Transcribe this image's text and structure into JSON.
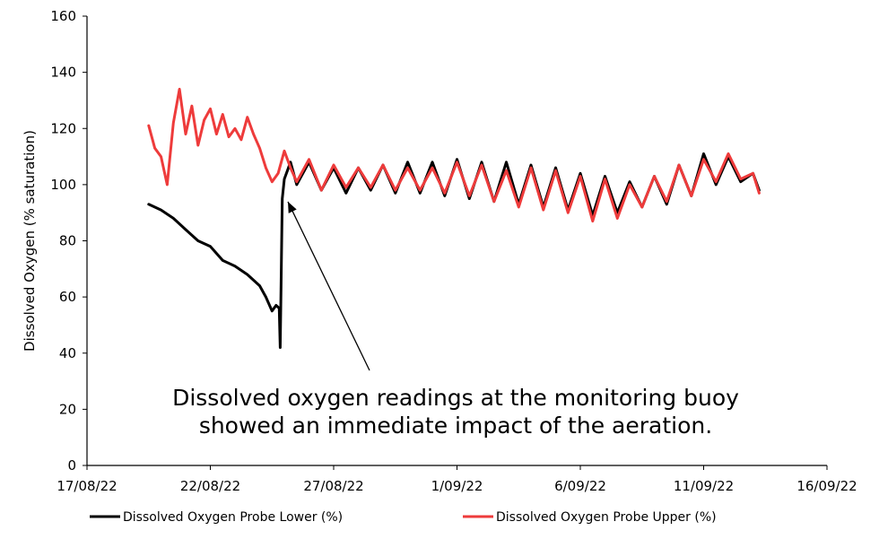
{
  "chart_data": {
    "type": "line",
    "title": "",
    "xlabel": "",
    "ylabel": "Dissolved Oxygen (% saturation)",
    "xlim": [
      "17/08/22",
      "16/09/22"
    ],
    "ylim": [
      0,
      160
    ],
    "x_ticks": [
      "17/08/22",
      "22/08/22",
      "27/08/22",
      "1/09/22",
      "6/09/22",
      "11/09/22",
      "16/09/22"
    ],
    "y_ticks": [
      0,
      20,
      40,
      60,
      80,
      100,
      120,
      140,
      160
    ],
    "grid": false,
    "legend_position": "bottom",
    "annotation": {
      "lines": [
        "Dissolved oxygen readings at the monitoring buoy",
        "showed an immediate impact of the aeration."
      ],
      "points_to": {
        "x": "2022-08-25",
        "y": 92
      }
    },
    "series": [
      {
        "name": "Dissolved Oxygen Probe Lower (%)",
        "color": "#000000",
        "x": [
          "2022-08-19T12:00",
          "2022-08-20T00:00",
          "2022-08-20T12:00",
          "2022-08-21T00:00",
          "2022-08-21T12:00",
          "2022-08-22T00:00",
          "2022-08-22T12:00",
          "2022-08-23T00:00",
          "2022-08-23T12:00",
          "2022-08-24T00:00",
          "2022-08-24T06:00",
          "2022-08-24T12:00",
          "2022-08-24T16:00",
          "2022-08-24T19:00",
          "2022-08-24T20:00",
          "2022-08-24T22:00",
          "2022-08-25T00:00",
          "2022-08-25T06:00",
          "2022-08-25T12:00",
          "2022-08-26T00:00",
          "2022-08-26T12:00",
          "2022-08-27T00:00",
          "2022-08-27T12:00",
          "2022-08-28T00:00",
          "2022-08-28T12:00",
          "2022-08-29T00:00",
          "2022-08-29T12:00",
          "2022-08-30T00:00",
          "2022-08-30T12:00",
          "2022-08-31T00:00",
          "2022-08-31T12:00",
          "2022-09-01T00:00",
          "2022-09-01T12:00",
          "2022-09-02T00:00",
          "2022-09-02T12:00",
          "2022-09-03T00:00",
          "2022-09-03T12:00",
          "2022-09-04T00:00",
          "2022-09-04T12:00",
          "2022-09-05T00:00",
          "2022-09-05T12:00",
          "2022-09-06T00:00",
          "2022-09-06T12:00",
          "2022-09-07T00:00",
          "2022-09-07T12:00",
          "2022-09-08T00:00",
          "2022-09-08T12:00",
          "2022-09-09T00:00",
          "2022-09-09T12:00",
          "2022-09-10T00:00",
          "2022-09-10T12:00",
          "2022-09-11T00:00",
          "2022-09-11T12:00",
          "2022-09-12T00:00",
          "2022-09-12T12:00",
          "2022-09-13T00:00",
          "2022-09-13T06:00"
        ],
        "values": [
          93,
          91,
          88,
          84,
          80,
          78,
          73,
          71,
          68,
          64,
          60,
          55,
          57,
          56,
          42,
          95,
          102,
          108,
          100,
          108,
          98,
          106,
          97,
          106,
          98,
          107,
          97,
          108,
          97,
          108,
          96,
          109,
          95,
          108,
          94,
          108,
          93,
          107,
          92,
          106,
          91,
          104,
          89,
          103,
          90,
          101,
          92,
          103,
          93,
          107,
          96,
          111,
          100,
          110,
          101,
          104,
          98
        ]
      },
      {
        "name": "Dissolved Oxygen Probe Upper (%)",
        "color": "#ee3b3b",
        "x": [
          "2022-08-19T12:00",
          "2022-08-19T18:00",
          "2022-08-20T00:00",
          "2022-08-20T06:00",
          "2022-08-20T12:00",
          "2022-08-20T18:00",
          "2022-08-21T00:00",
          "2022-08-21T06:00",
          "2022-08-21T12:00",
          "2022-08-21T18:00",
          "2022-08-22T00:00",
          "2022-08-22T06:00",
          "2022-08-22T12:00",
          "2022-08-22T18:00",
          "2022-08-23T00:00",
          "2022-08-23T06:00",
          "2022-08-23T12:00",
          "2022-08-23T18:00",
          "2022-08-24T00:00",
          "2022-08-24T06:00",
          "2022-08-24T12:00",
          "2022-08-24T18:00",
          "2022-08-25T00:00",
          "2022-08-25T06:00",
          "2022-08-25T12:00",
          "2022-08-26T00:00",
          "2022-08-26T12:00",
          "2022-08-27T00:00",
          "2022-08-27T12:00",
          "2022-08-28T00:00",
          "2022-08-28T12:00",
          "2022-08-29T00:00",
          "2022-08-29T12:00",
          "2022-08-30T00:00",
          "2022-08-30T12:00",
          "2022-08-31T00:00",
          "2022-08-31T12:00",
          "2022-09-01T00:00",
          "2022-09-01T12:00",
          "2022-09-02T00:00",
          "2022-09-02T12:00",
          "2022-09-03T00:00",
          "2022-09-03T12:00",
          "2022-09-04T00:00",
          "2022-09-04T12:00",
          "2022-09-05T00:00",
          "2022-09-05T12:00",
          "2022-09-06T00:00",
          "2022-09-06T12:00",
          "2022-09-07T00:00",
          "2022-09-07T12:00",
          "2022-09-08T00:00",
          "2022-09-08T12:00",
          "2022-09-09T00:00",
          "2022-09-09T12:00",
          "2022-09-10T00:00",
          "2022-09-10T12:00",
          "2022-09-11T00:00",
          "2022-09-11T12:00",
          "2022-09-12T00:00",
          "2022-09-12T12:00",
          "2022-09-13T00:00",
          "2022-09-13T06:00"
        ],
        "values": [
          121,
          113,
          110,
          100,
          122,
          134,
          118,
          128,
          114,
          123,
          127,
          118,
          125,
          117,
          120,
          116,
          124,
          118,
          113,
          106,
          101,
          104,
          112,
          106,
          101,
          109,
          98,
          107,
          99,
          106,
          99,
          107,
          98,
          106,
          98,
          106,
          97,
          108,
          96,
          107,
          94,
          105,
          92,
          106,
          91,
          105,
          90,
          103,
          87,
          102,
          88,
          100,
          92,
          103,
          94,
          107,
          96,
          109,
          101,
          111,
          102,
          104,
          97
        ]
      }
    ]
  }
}
